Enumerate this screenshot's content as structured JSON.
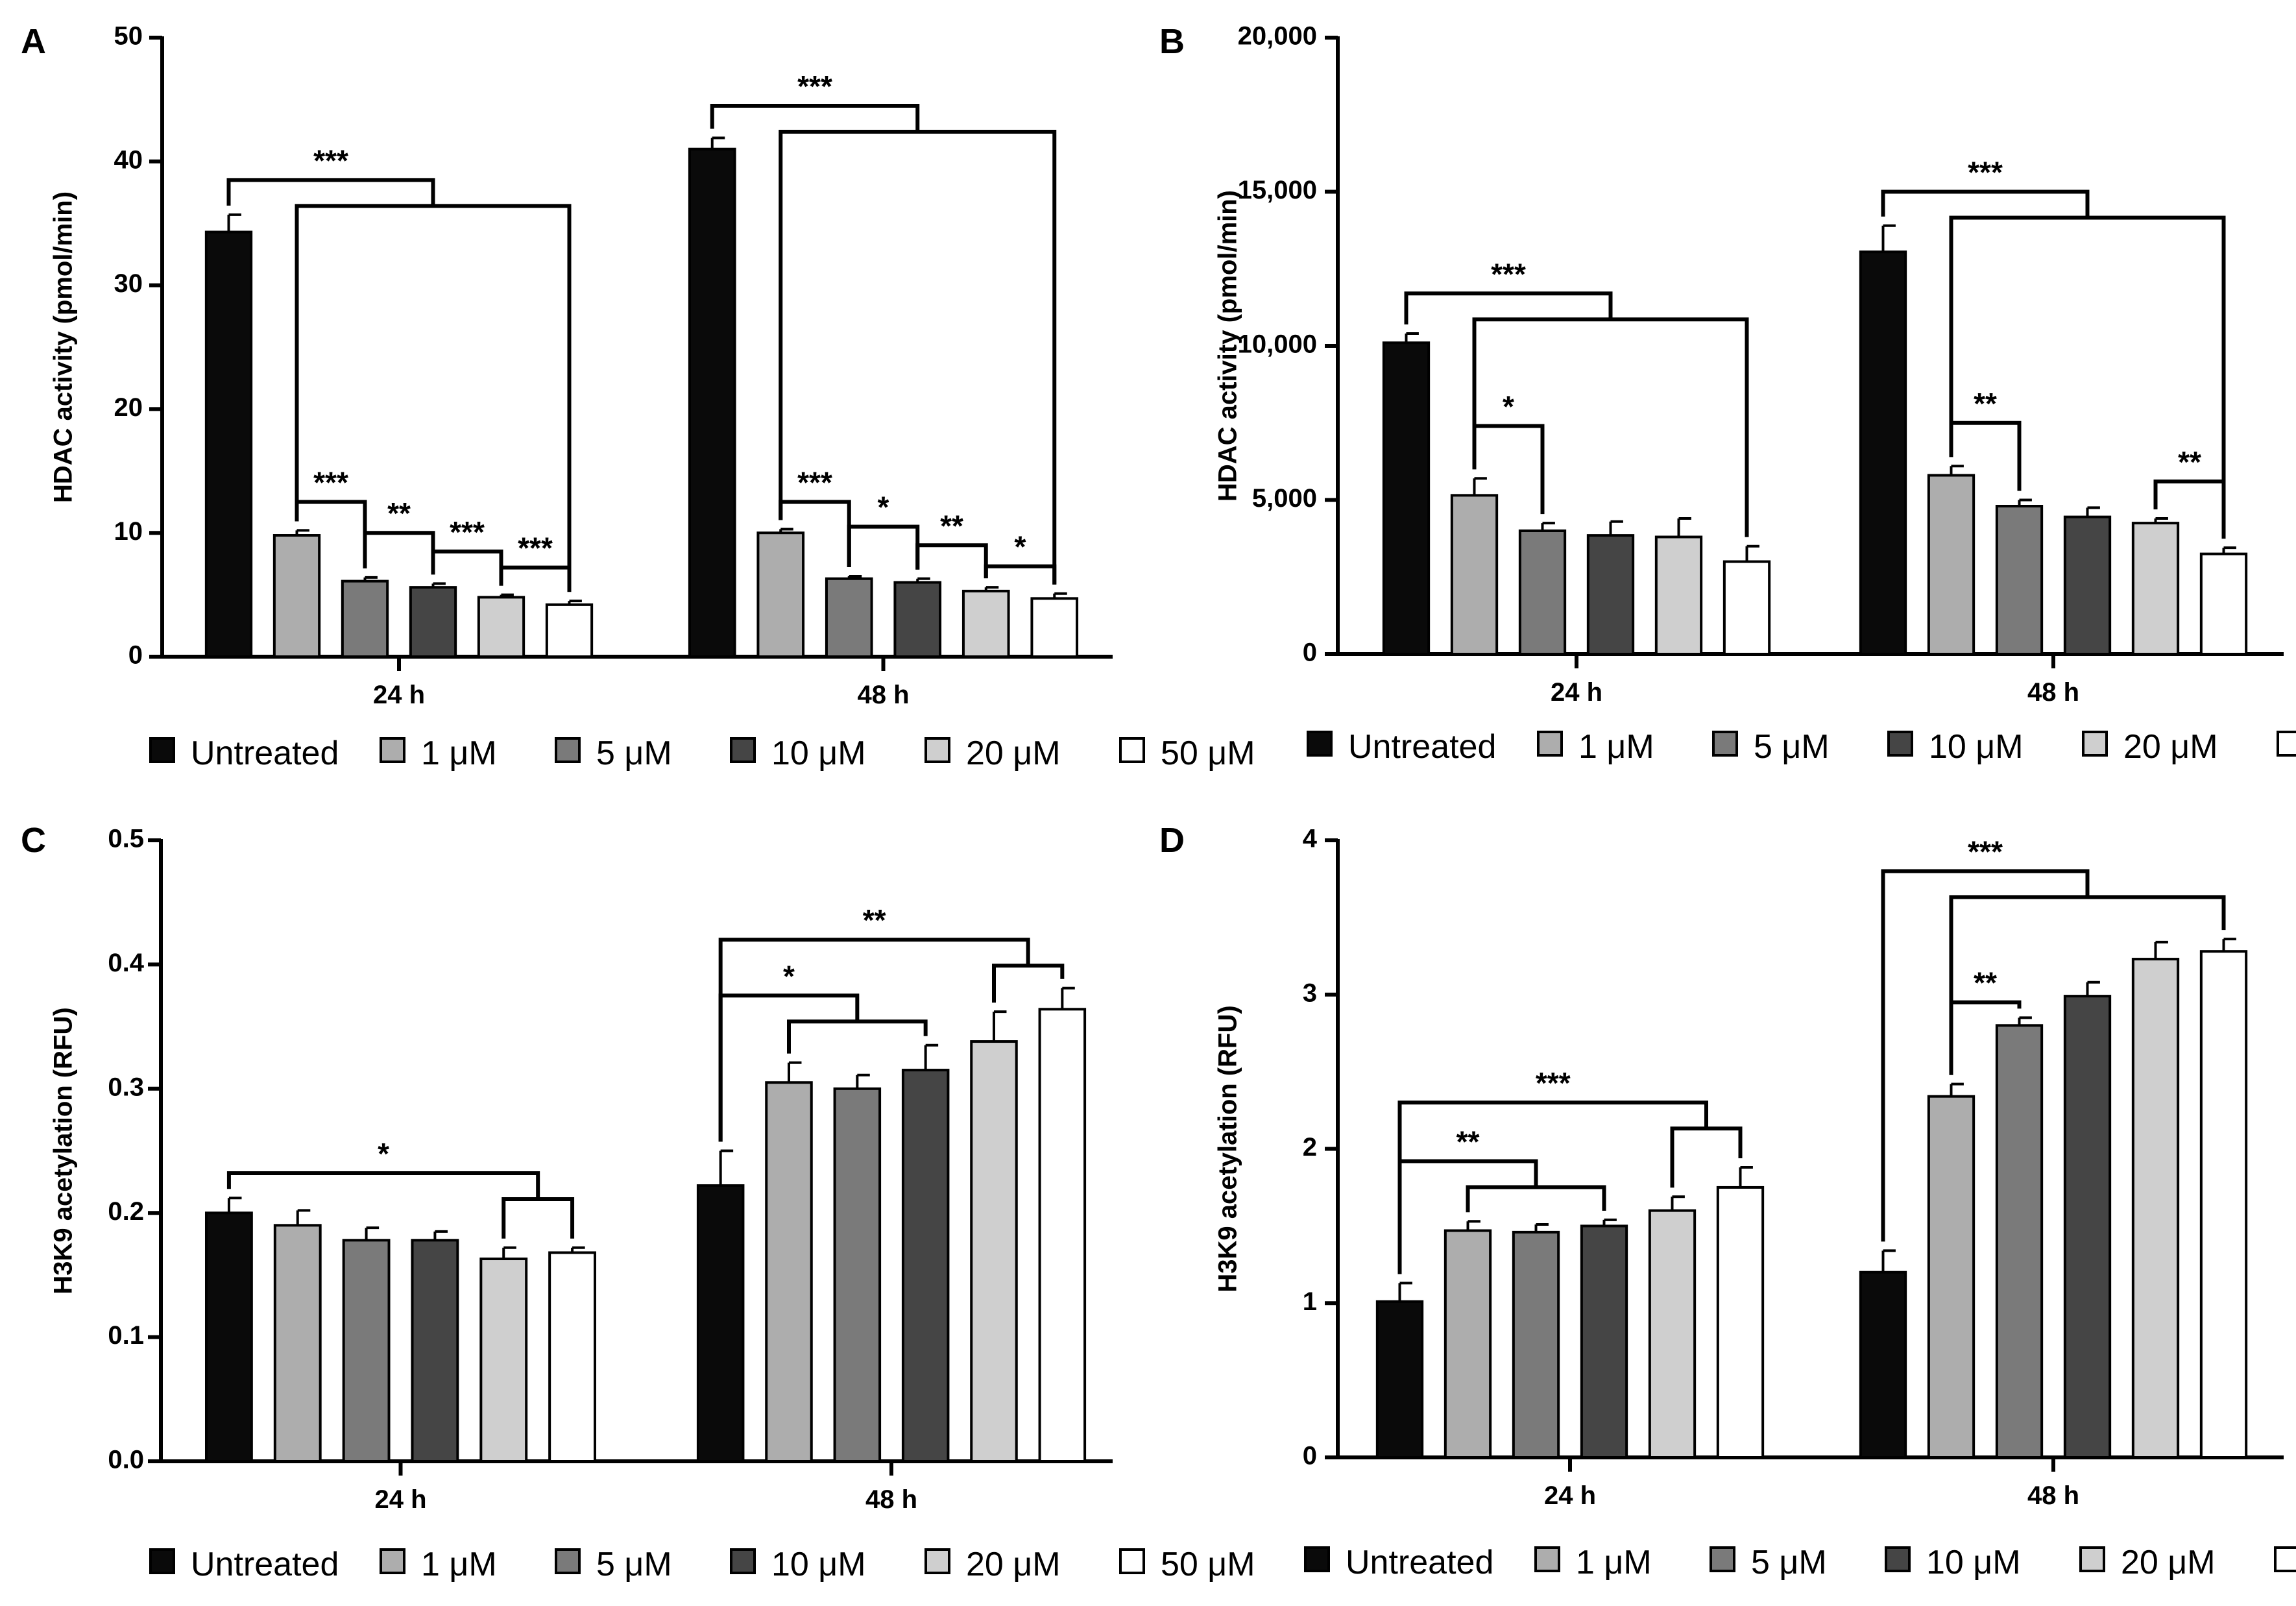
{
  "legend": [
    "Untreated",
    "1 μM",
    "5 μM",
    "10 μM",
    "20 μM",
    "50 μM"
  ],
  "colors": {
    "series": [
      "#0a0a0a",
      "#adadad",
      "#7a7a7a",
      "#454545",
      "#cfcfcf",
      "#ffffff"
    ],
    "stroke": "#000000"
  },
  "chart_data": [
    {
      "panel": "A",
      "type": "bar",
      "ylabel": "HDAC activity (pmol/min)",
      "ylim": [
        0,
        50
      ],
      "yticks": [
        0,
        10,
        20,
        30,
        40,
        50
      ],
      "ytick_labels": [
        "0",
        "10",
        "20",
        "30",
        "40",
        "50"
      ],
      "categories": [
        "24 h",
        "48 h"
      ],
      "series": [
        {
          "name": "Untreated",
          "values": [
            34.3,
            41.0
          ],
          "errors": [
            1.4,
            0.9
          ]
        },
        {
          "name": "1 μM",
          "values": [
            9.8,
            10.0
          ],
          "errors": [
            0.4,
            0.3
          ]
        },
        {
          "name": "5 μM",
          "values": [
            6.1,
            6.3
          ],
          "errors": [
            0.3,
            0.2
          ]
        },
        {
          "name": "10 μM",
          "values": [
            5.6,
            6.0
          ],
          "errors": [
            0.3,
            0.3
          ]
        },
        {
          "name": "20 μM",
          "values": [
            4.8,
            5.3
          ],
          "errors": [
            0.2,
            0.3
          ]
        },
        {
          "name": "50 μM",
          "values": [
            4.2,
            4.7
          ],
          "errors": [
            0.3,
            0.4
          ]
        }
      ],
      "significance": [
        {
          "cat": 0,
          "left": [
            0
          ],
          "right": [
            1,
            5
          ],
          "y": 38.5,
          "label": "***"
        },
        {
          "cat": 0,
          "left": [
            1
          ],
          "right": [
            2
          ],
          "y": 12.5,
          "label": "***"
        },
        {
          "cat": 0,
          "left": [
            2
          ],
          "right": [
            3
          ],
          "y": 10.0,
          "label": "**"
        },
        {
          "cat": 0,
          "left": [
            3
          ],
          "right": [
            4
          ],
          "y": 8.5,
          "label": "***"
        },
        {
          "cat": 0,
          "left": [
            4
          ],
          "right": [
            5
          ],
          "y": 7.2,
          "label": "***"
        },
        {
          "cat": 1,
          "left": [
            0
          ],
          "right": [
            1,
            5
          ],
          "y": 44.5,
          "label": "***"
        },
        {
          "cat": 1,
          "left": [
            1
          ],
          "right": [
            2
          ],
          "y": 12.5,
          "label": "***"
        },
        {
          "cat": 1,
          "left": [
            2
          ],
          "right": [
            3
          ],
          "y": 10.5,
          "label": "*"
        },
        {
          "cat": 1,
          "left": [
            3
          ],
          "right": [
            4
          ],
          "y": 9.0,
          "label": "**"
        },
        {
          "cat": 1,
          "left": [
            4
          ],
          "right": [
            5
          ],
          "y": 7.3,
          "label": "*"
        }
      ]
    },
    {
      "panel": "B",
      "type": "bar",
      "ylabel": "HDAC activity (pmol/min)",
      "ylim": [
        0,
        20000
      ],
      "yticks": [
        0,
        5000,
        10000,
        15000,
        20000
      ],
      "ytick_labels": [
        "0",
        "5,000",
        "10,000",
        "15,000",
        "20,000"
      ],
      "categories": [
        "24 h",
        "48 h"
      ],
      "series": [
        {
          "name": "Untreated",
          "values": [
            10100,
            13050
          ],
          "errors": [
            300,
            850
          ]
        },
        {
          "name": "1 μM",
          "values": [
            5150,
            5800
          ],
          "errors": [
            550,
            300
          ]
        },
        {
          "name": "5 μM",
          "values": [
            4000,
            4800
          ],
          "errors": [
            250,
            200
          ]
        },
        {
          "name": "10 μM",
          "values": [
            3850,
            4450
          ],
          "errors": [
            450,
            300
          ]
        },
        {
          "name": "20 μM",
          "values": [
            3800,
            4250
          ],
          "errors": [
            600,
            150
          ]
        },
        {
          "name": "50 μM",
          "values": [
            3000,
            3250
          ],
          "errors": [
            500,
            200
          ]
        }
      ],
      "significance": [
        {
          "cat": 0,
          "left": [
            0
          ],
          "right": [
            1,
            5
          ],
          "y": 11700,
          "label": "***"
        },
        {
          "cat": 0,
          "left": [
            1
          ],
          "right": [
            2
          ],
          "y": 7400,
          "label": "*"
        },
        {
          "cat": 1,
          "left": [
            0
          ],
          "right": [
            1,
            5
          ],
          "y": 15000,
          "label": "***"
        },
        {
          "cat": 1,
          "left": [
            1
          ],
          "right": [
            2
          ],
          "y": 7500,
          "label": "**"
        },
        {
          "cat": 1,
          "left": [
            4
          ],
          "right": [
            5
          ],
          "y": 5600,
          "label": "**"
        }
      ]
    },
    {
      "panel": "C",
      "type": "bar",
      "ylabel": "H3K9 acetylation (RFU)",
      "ylim": [
        0,
        0.5
      ],
      "yticks": [
        0,
        0.1,
        0.2,
        0.3,
        0.4,
        0.5
      ],
      "ytick_labels": [
        "0.0",
        "0.1",
        "0.2",
        "0.3",
        "0.4",
        "0.5"
      ],
      "categories": [
        "24 h",
        "48 h"
      ],
      "series": [
        {
          "name": "Untreated",
          "values": [
            0.2,
            0.222
          ],
          "errors": [
            0.012,
            0.028
          ]
        },
        {
          "name": "1 μM",
          "values": [
            0.19,
            0.305
          ],
          "errors": [
            0.012,
            0.016
          ]
        },
        {
          "name": "5 μM",
          "values": [
            0.178,
            0.3
          ],
          "errors": [
            0.01,
            0.011
          ]
        },
        {
          "name": "10 μM",
          "values": [
            0.178,
            0.315
          ],
          "errors": [
            0.007,
            0.02
          ]
        },
        {
          "name": "20 μM",
          "values": [
            0.163,
            0.338
          ],
          "errors": [
            0.009,
            0.024
          ]
        },
        {
          "name": "50 μM",
          "values": [
            0.168,
            0.364
          ],
          "errors": [
            0.004,
            0.017
          ]
        }
      ],
      "significance": [
        {
          "cat": 0,
          "left": [
            0
          ],
          "right": [
            4,
            5
          ],
          "y": 0.232,
          "label": "*"
        },
        {
          "cat": 1,
          "left": [
            0
          ],
          "right": [
            1,
            3
          ],
          "y": 0.375,
          "label": "*"
        },
        {
          "cat": 1,
          "left": [
            0
          ],
          "right": [
            4,
            5
          ],
          "y": 0.42,
          "label": "**"
        }
      ]
    },
    {
      "panel": "D",
      "type": "bar",
      "ylabel": "H3K9 acetylation (RFU)",
      "ylim": [
        0,
        4
      ],
      "yticks": [
        0,
        1,
        2,
        3,
        4
      ],
      "ytick_labels": [
        "0",
        "1",
        "2",
        "3",
        "4"
      ],
      "categories": [
        "24 h",
        "48 h"
      ],
      "series": [
        {
          "name": "Untreated",
          "values": [
            1.01,
            1.2
          ],
          "errors": [
            0.12,
            0.14
          ]
        },
        {
          "name": "1 μM",
          "values": [
            1.47,
            2.34
          ],
          "errors": [
            0.06,
            0.08
          ]
        },
        {
          "name": "5 μM",
          "values": [
            1.46,
            2.8
          ],
          "errors": [
            0.05,
            0.05
          ]
        },
        {
          "name": "10 μM",
          "values": [
            1.5,
            2.99
          ],
          "errors": [
            0.04,
            0.09
          ]
        },
        {
          "name": "20 μM",
          "values": [
            1.6,
            3.23
          ],
          "errors": [
            0.09,
            0.11
          ]
        },
        {
          "name": "50 μM",
          "values": [
            1.75,
            3.28
          ],
          "errors": [
            0.13,
            0.08
          ]
        }
      ],
      "significance": [
        {
          "cat": 0,
          "left": [
            0
          ],
          "right": [
            1,
            3
          ],
          "y": 1.92,
          "label": "**"
        },
        {
          "cat": 0,
          "left": [
            0
          ],
          "right": [
            4,
            5
          ],
          "y": 2.3,
          "label": "***"
        },
        {
          "cat": 1,
          "left": [
            0
          ],
          "right": [
            1,
            5
          ],
          "y": 3.8,
          "label": "***"
        },
        {
          "cat": 1,
          "left": [
            1
          ],
          "right": [
            2
          ],
          "y": 2.95,
          "label": "**"
        }
      ]
    }
  ]
}
